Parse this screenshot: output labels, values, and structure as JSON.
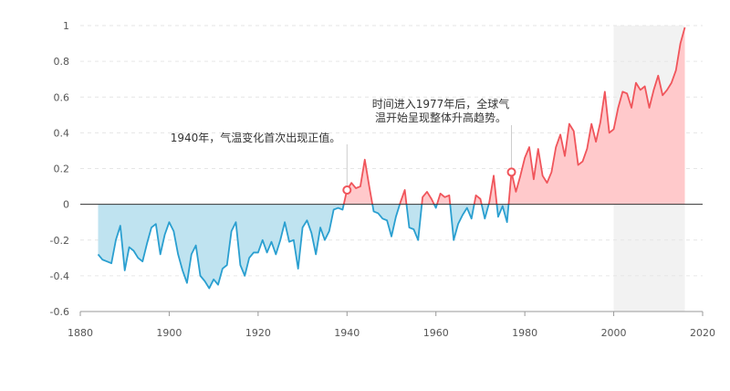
{
  "chart_data": {
    "type": "area",
    "title": "",
    "xlabel": "",
    "ylabel": "",
    "xlim": [
      1880,
      2020
    ],
    "ylim": [
      -0.6,
      1.0
    ],
    "x_ticks": [
      1880,
      1900,
      1920,
      1940,
      1960,
      1980,
      2000,
      2020
    ],
    "y_ticks": [
      -0.6,
      -0.4,
      -0.2,
      0,
      0.2,
      0.4,
      0.6,
      0.8,
      1
    ],
    "y_tick_labels": [
      "-0.6",
      "-0.4",
      "-0.2",
      "0",
      "0.2",
      "0.4",
      "0.6",
      "0.8",
      "1"
    ],
    "grid": "horizontal dashed",
    "positive_color": "#f0555b",
    "positive_fill": "#ffc9cb",
    "negative_color": "#2a9fd0",
    "negative_fill": "#bfe3f0",
    "highlight_band": {
      "x_start": 2000,
      "x_end": 2016,
      "color": "#f2f2f2"
    },
    "x": [
      1884,
      1885,
      1886,
      1887,
      1888,
      1889,
      1890,
      1891,
      1892,
      1893,
      1894,
      1895,
      1896,
      1897,
      1898,
      1899,
      1900,
      1901,
      1902,
      1903,
      1904,
      1905,
      1906,
      1907,
      1908,
      1909,
      1910,
      1911,
      1912,
      1913,
      1914,
      1915,
      1916,
      1917,
      1918,
      1919,
      1920,
      1921,
      1922,
      1923,
      1924,
      1925,
      1926,
      1927,
      1928,
      1929,
      1930,
      1931,
      1932,
      1933,
      1934,
      1935,
      1936,
      1937,
      1938,
      1939,
      1940,
      1941,
      1942,
      1943,
      1944,
      1945,
      1946,
      1947,
      1948,
      1949,
      1950,
      1951,
      1952,
      1953,
      1954,
      1955,
      1956,
      1957,
      1958,
      1959,
      1960,
      1961,
      1962,
      1963,
      1964,
      1965,
      1966,
      1967,
      1968,
      1969,
      1970,
      1971,
      1972,
      1973,
      1974,
      1975,
      1976,
      1977,
      1978,
      1979,
      1980,
      1981,
      1982,
      1983,
      1984,
      1985,
      1986,
      1987,
      1988,
      1989,
      1990,
      1991,
      1992,
      1993,
      1994,
      1995,
      1996,
      1997,
      1998,
      1999,
      2000,
      2001,
      2002,
      2003,
      2004,
      2005,
      2006,
      2007,
      2008,
      2009,
      2010,
      2011,
      2012,
      2013,
      2014,
      2015,
      2016
    ],
    "values": [
      -0.28,
      -0.31,
      -0.32,
      -0.33,
      -0.2,
      -0.12,
      -0.37,
      -0.24,
      -0.26,
      -0.3,
      -0.32,
      -0.22,
      -0.13,
      -0.11,
      -0.28,
      -0.17,
      -0.1,
      -0.15,
      -0.28,
      -0.37,
      -0.44,
      -0.28,
      -0.23,
      -0.4,
      -0.43,
      -0.47,
      -0.42,
      -0.45,
      -0.36,
      -0.34,
      -0.15,
      -0.1,
      -0.34,
      -0.4,
      -0.3,
      -0.27,
      -0.27,
      -0.2,
      -0.27,
      -0.21,
      -0.28,
      -0.2,
      -0.1,
      -0.21,
      -0.2,
      -0.36,
      -0.13,
      -0.09,
      -0.16,
      -0.28,
      -0.13,
      -0.2,
      -0.15,
      -0.03,
      -0.02,
      -0.03,
      0.08,
      0.12,
      0.09,
      0.1,
      0.25,
      0.1,
      -0.04,
      -0.05,
      -0.08,
      -0.09,
      -0.18,
      -0.07,
      0.01,
      0.08,
      -0.13,
      -0.14,
      -0.2,
      0.04,
      0.07,
      0.03,
      -0.02,
      0.06,
      0.04,
      0.05,
      -0.2,
      -0.11,
      -0.06,
      -0.02,
      -0.08,
      0.05,
      0.03,
      -0.08,
      0.01,
      0.16,
      -0.07,
      -0.01,
      -0.1,
      0.18,
      0.07,
      0.16,
      0.26,
      0.32,
      0.14,
      0.31,
      0.16,
      0.12,
      0.18,
      0.32,
      0.39,
      0.27,
      0.45,
      0.41,
      0.22,
      0.24,
      0.31,
      0.45,
      0.35,
      0.46,
      0.63,
      0.4,
      0.42,
      0.54,
      0.63,
      0.62,
      0.54,
      0.68,
      0.64,
      0.66,
      0.54,
      0.64,
      0.72,
      0.61,
      0.64,
      0.68,
      0.75,
      0.9,
      0.99
    ],
    "annotations": [
      {
        "x": 1940,
        "y": 0.08,
        "lines": [
          "1940年，气温变化首次出现正值。"
        ]
      },
      {
        "x": 1977,
        "y": 0.18,
        "lines": [
          "时间进入1977年后，全球气",
          "温开始呈现整体升高趋势。"
        ]
      }
    ]
  }
}
